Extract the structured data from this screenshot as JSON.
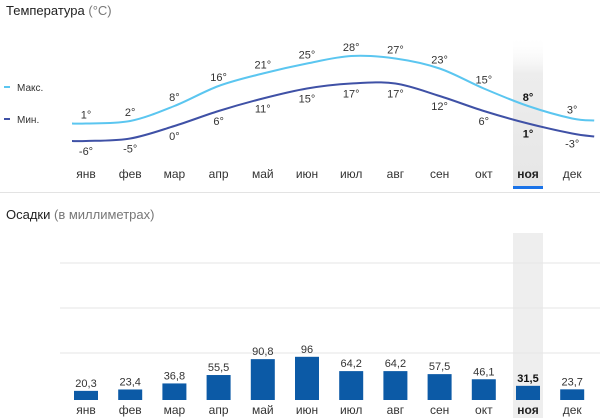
{
  "temperature": {
    "title": "Температура",
    "unit": "(°C)",
    "legend": [
      {
        "label": "Макс.",
        "color": "#5bc6f0"
      },
      {
        "label": "Мин.",
        "color": "#3f51a6"
      }
    ]
  },
  "precipitation": {
    "title": "Осадки",
    "unit": "(в миллиметрах)",
    "bar_color": "#0c5aa6"
  },
  "current_month_index": 10,
  "highlight_color": "#1a73e8",
  "chart_data": [
    {
      "type": "line",
      "categories": [
        "янв",
        "фев",
        "мар",
        "апр",
        "май",
        "июн",
        "июл",
        "авг",
        "сен",
        "окт",
        "ноя",
        "дек"
      ],
      "series": [
        {
          "name": "Макс.",
          "values": [
            1,
            2,
            8,
            16,
            21,
            25,
            28,
            27,
            23,
            15,
            8,
            3
          ],
          "labels": [
            "1°",
            "2°",
            "8°",
            "16°",
            "21°",
            "25°",
            "28°",
            "27°",
            "23°",
            "15°",
            "8°",
            "3°"
          ],
          "color": "#5bc6f0"
        },
        {
          "name": "Мин.",
          "values": [
            -6,
            -5,
            0,
            6,
            11,
            15,
            17,
            17,
            12,
            6,
            1,
            -3
          ],
          "labels": [
            "-6°",
            "-5°",
            "0°",
            "6°",
            "11°",
            "15°",
            "17°",
            "17°",
            "12°",
            "6°",
            "1°",
            "-3°"
          ],
          "color": "#3f51a6"
        }
      ],
      "title": "Температура",
      "ylabel": "°C",
      "grid": false,
      "legend": "left"
    },
    {
      "type": "bar",
      "categories": [
        "янв",
        "фев",
        "мар",
        "апр",
        "май",
        "июн",
        "июл",
        "авг",
        "сен",
        "окт",
        "ноя",
        "дек"
      ],
      "values": [
        20.3,
        23.4,
        36.8,
        55.5,
        90.8,
        96,
        64.2,
        64.2,
        57.5,
        46.1,
        31.5,
        23.7
      ],
      "labels": [
        "20,3",
        "23,4",
        "36,8",
        "55,5",
        "90,8",
        "96",
        "64,2",
        "64,2",
        "57,5",
        "46,1",
        "31,5",
        "23,7"
      ],
      "title": "Осадки",
      "ylabel": "мм",
      "grid": true
    }
  ]
}
